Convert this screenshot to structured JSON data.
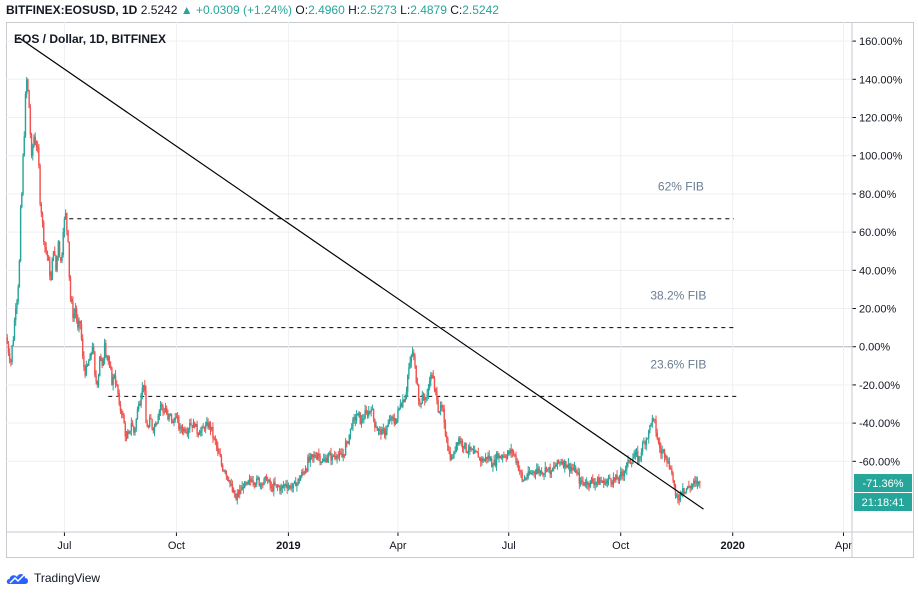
{
  "header": {
    "symbol": "BITFINEX:EOSUSD, 1D",
    "last": "2.5242",
    "change": "+0.0309 (+1.24%)",
    "o_label": "O:",
    "o_value": "2.4960",
    "h_label": "H:",
    "h_value": "2.5273",
    "l_label": "L:",
    "l_value": "2.4879",
    "c_label": "C:",
    "c_value": "2.5242"
  },
  "colors": {
    "up": "#26a69a",
    "down": "#ef5350",
    "grid": "#eef0f3",
    "zero_line": "#b2b5be",
    "trend_line": "#000000",
    "fib_line": "#000000",
    "fib_text": "#6a7d92",
    "badge": "#26a69a"
  },
  "footer": {
    "brand": "TradingView",
    "logo_icon": "tradingview-cloud-icon"
  },
  "chart_data": {
    "type": "line",
    "title": "EOS / Dollar, 1D, BITFINEX",
    "x_tick_labels": [
      "Jul",
      "Oct",
      "2019",
      "Apr",
      "Jul",
      "Oct",
      "2020",
      "Apr"
    ],
    "x_tick_bold": [
      false,
      false,
      true,
      false,
      false,
      false,
      true,
      false
    ],
    "x_range_days": [
      -48,
      647
    ],
    "y_ticks": [
      160,
      140,
      120,
      100,
      80,
      60,
      40,
      20,
      0,
      -20,
      -40,
      -60
    ],
    "y_tick_labels": [
      "160.00%",
      "140.00%",
      "120.00%",
      "100.00%",
      "80.00%",
      "60.00%",
      "40.00%",
      "20.00%",
      "0.00%",
      "-20.00%",
      "-40.00%",
      "-60.00%"
    ],
    "ylim": [
      -97,
      170
    ],
    "grid": true,
    "series": [
      {
        "points": [
          [
            -48,
            5
          ],
          [
            -44,
            -8
          ],
          [
            -40,
            20
          ],
          [
            -37,
            45
          ],
          [
            -35,
            80
          ],
          [
            -33,
            110
          ],
          [
            -31,
            140
          ],
          [
            -29,
            125
          ],
          [
            -27,
            100
          ],
          [
            -25,
            110
          ],
          [
            -23,
            105
          ],
          [
            -21,
            95
          ],
          [
            -19,
            70
          ],
          [
            -17,
            55
          ],
          [
            -15,
            50
          ],
          [
            -13,
            45
          ],
          [
            -11,
            35
          ],
          [
            -9,
            50
          ],
          [
            -7,
            40
          ],
          [
            -5,
            55
          ],
          [
            -3,
            45
          ],
          [
            -1,
            60
          ],
          [
            1,
            70
          ],
          [
            3,
            55
          ],
          [
            5,
            25
          ],
          [
            7,
            15
          ],
          [
            9,
            20
          ],
          [
            11,
            10
          ],
          [
            13,
            12
          ],
          [
            15,
            -5
          ],
          [
            17,
            -15
          ],
          [
            19,
            -10
          ],
          [
            21,
            -5
          ],
          [
            23,
            0
          ],
          [
            25,
            -15
          ],
          [
            27,
            -20
          ],
          [
            29,
            -5
          ],
          [
            31,
            -10
          ],
          [
            33,
            2
          ],
          [
            35,
            -5
          ],
          [
            37,
            -10
          ],
          [
            39,
            -20
          ],
          [
            41,
            -15
          ],
          [
            43,
            -20
          ],
          [
            45,
            -30
          ],
          [
            47,
            -35
          ],
          [
            49,
            -40
          ],
          [
            51,
            -48
          ],
          [
            53,
            -45
          ],
          [
            55,
            -40
          ],
          [
            57,
            -45
          ],
          [
            59,
            -38
          ],
          [
            61,
            -30
          ],
          [
            63,
            -25
          ],
          [
            65,
            -20
          ],
          [
            67,
            -40
          ],
          [
            69,
            -42
          ],
          [
            71,
            -38
          ],
          [
            73,
            -44
          ],
          [
            75,
            -40
          ],
          [
            77,
            -36
          ],
          [
            79,
            -30
          ],
          [
            81,
            -34
          ],
          [
            83,
            -32
          ],
          [
            85,
            -38
          ],
          [
            87,
            -35
          ],
          [
            89,
            -40
          ],
          [
            91,
            -37
          ],
          [
            95,
            -42
          ],
          [
            99,
            -44
          ],
          [
            103,
            -40
          ],
          [
            107,
            -42
          ],
          [
            111,
            -45
          ],
          [
            115,
            -43
          ],
          [
            119,
            -40
          ],
          [
            123,
            -48
          ],
          [
            126,
            -55
          ],
          [
            129,
            -62
          ],
          [
            132,
            -65
          ],
          [
            135,
            -70
          ],
          [
            138,
            -76
          ],
          [
            141,
            -80
          ],
          [
            144,
            -75
          ],
          [
            147,
            -74
          ],
          [
            150,
            -72
          ],
          [
            154,
            -70
          ],
          [
            158,
            -69
          ],
          [
            162,
            -72
          ],
          [
            166,
            -70
          ],
          [
            170,
            -74
          ],
          [
            174,
            -73
          ],
          [
            178,
            -74
          ],
          [
            182,
            -72
          ],
          [
            186,
            -74
          ],
          [
            190,
            -73
          ],
          [
            194,
            -68
          ],
          [
            198,
            -64
          ],
          [
            201,
            -60
          ],
          [
            204,
            -58
          ],
          [
            208,
            -56
          ],
          [
            212,
            -60
          ],
          [
            216,
            -58
          ],
          [
            220,
            -57
          ],
          [
            224,
            -57
          ],
          [
            228,
            -58
          ],
          [
            232,
            -50
          ],
          [
            236,
            -42
          ],
          [
            240,
            -36
          ],
          [
            244,
            -38
          ],
          [
            248,
            -35
          ],
          [
            252,
            -33
          ],
          [
            256,
            -42
          ],
          [
            260,
            -46
          ],
          [
            264,
            -44
          ],
          [
            268,
            -38
          ],
          [
            272,
            -40
          ],
          [
            276,
            -30
          ],
          [
            280,
            -26
          ],
          [
            282,
            -15
          ],
          [
            284,
            -8
          ],
          [
            286,
            -3
          ],
          [
            288,
            -10
          ],
          [
            290,
            -20
          ],
          [
            292,
            -30
          ],
          [
            294,
            -25
          ],
          [
            296,
            -28
          ],
          [
            298,
            -25
          ],
          [
            300,
            -18
          ],
          [
            302,
            -15
          ],
          [
            304,
            -22
          ],
          [
            306,
            -28
          ],
          [
            308,
            -34
          ],
          [
            310,
            -32
          ],
          [
            312,
            -40
          ],
          [
            314,
            -48
          ],
          [
            316,
            -55
          ],
          [
            318,
            -58
          ],
          [
            320,
            -55
          ],
          [
            322,
            -50
          ],
          [
            324,
            -48
          ],
          [
            328,
            -52
          ],
          [
            332,
            -54
          ],
          [
            336,
            -56
          ],
          [
            340,
            -58
          ],
          [
            344,
            -60
          ],
          [
            348,
            -57
          ],
          [
            352,
            -62
          ],
          [
            356,
            -58
          ],
          [
            360,
            -57
          ],
          [
            364,
            -56
          ],
          [
            368,
            -55
          ],
          [
            372,
            -60
          ],
          [
            374,
            -65
          ],
          [
            376,
            -70
          ],
          [
            380,
            -68
          ],
          [
            384,
            -66
          ],
          [
            388,
            -64
          ],
          [
            392,
            -66
          ],
          [
            396,
            -64
          ],
          [
            400,
            -65
          ],
          [
            404,
            -62
          ],
          [
            408,
            -60
          ],
          [
            412,
            -62
          ],
          [
            416,
            -63
          ],
          [
            420,
            -66
          ],
          [
            424,
            -70
          ],
          [
            428,
            -72
          ],
          [
            432,
            -70
          ],
          [
            436,
            -71
          ],
          [
            440,
            -70
          ],
          [
            444,
            -72
          ],
          [
            448,
            -69
          ],
          [
            452,
            -70
          ],
          [
            456,
            -68
          ],
          [
            460,
            -65
          ],
          [
            464,
            -60
          ],
          [
            468,
            -57
          ],
          [
            472,
            -58
          ],
          [
            474,
            -55
          ],
          [
            476,
            -50
          ],
          [
            478,
            -48
          ],
          [
            480,
            -44
          ],
          [
            482,
            -40
          ],
          [
            484,
            -38
          ],
          [
            486,
            -45
          ],
          [
            488,
            -50
          ],
          [
            490,
            -56
          ],
          [
            492,
            -54
          ],
          [
            494,
            -57
          ],
          [
            496,
            -60
          ],
          [
            498,
            -64
          ],
          [
            500,
            -70
          ],
          [
            502,
            -78
          ],
          [
            504,
            -80
          ],
          [
            506,
            -76
          ],
          [
            508,
            -74
          ],
          [
            510,
            -76
          ],
          [
            512,
            -73
          ],
          [
            514,
            -74
          ],
          [
            516,
            -72
          ],
          [
            518,
            -71
          ],
          [
            520,
            -72
          ],
          [
            522,
            -71.36
          ]
        ]
      }
    ],
    "trend_line": [
      [
        -38,
        162
      ],
      [
        525,
        -85
      ]
    ],
    "fib_levels": [
      {
        "label": "62% FIB",
        "value": 67,
        "x_start": 4,
        "x_end": 550
      },
      {
        "label": "38.2% FIB",
        "value": 10,
        "x_start": 27,
        "x_end": 552
      },
      {
        "label": "23.6% FIB",
        "value": -26,
        "x_start": 36,
        "x_end": 552
      }
    ],
    "last_value_badge": "-71.36%",
    "countdown_badge": "21:18:41"
  }
}
